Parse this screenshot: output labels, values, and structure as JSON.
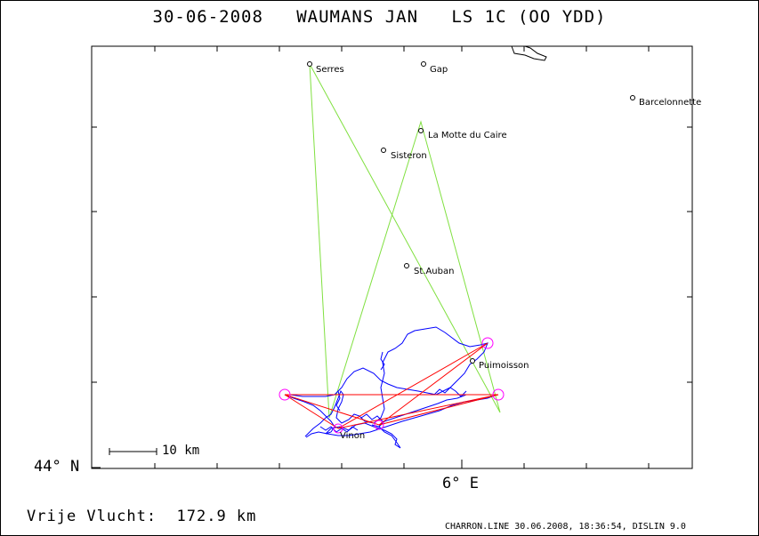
{
  "title": "30-06-2008   WAUMANS JAN   LS 1C (OO YDD)",
  "axes": {
    "latitude_label": "44° N",
    "longitude_label": "6° E"
  },
  "scale_bar": {
    "label": "10 km"
  },
  "free_flight": "Vrije Vlucht:  172.9 km",
  "footer": "CHARRON.LINE 30.06.2008, 18:36:54, DISLIN 9.0",
  "places": [
    {
      "name": "Serres"
    },
    {
      "name": "Gap"
    },
    {
      "name": "Barcelonnette"
    },
    {
      "name": "La Motte du Caire"
    },
    {
      "name": "Sisteron"
    },
    {
      "name": "St.Auban"
    },
    {
      "name": "Puimoisson"
    },
    {
      "name": "Vinon"
    }
  ],
  "colors": {
    "track": "#0000ff",
    "task_line": "#80e040",
    "free_flight_line": "#ff0000",
    "turnpoint_circle": "#ff00ff"
  }
}
